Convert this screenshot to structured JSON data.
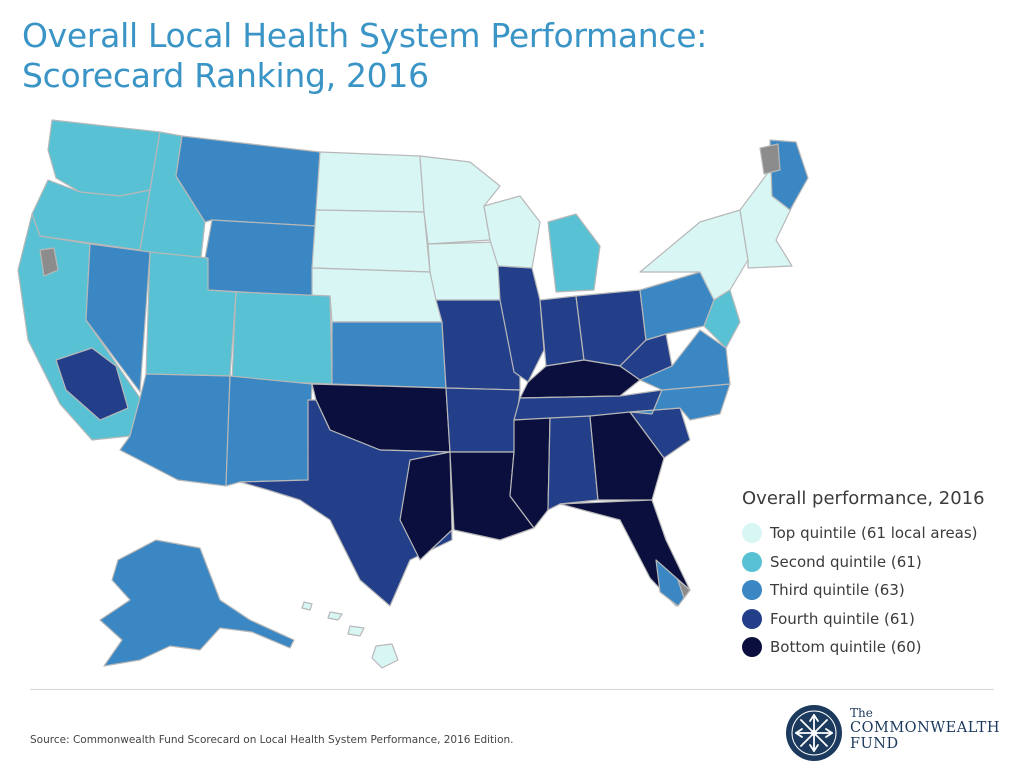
{
  "title": {
    "line1": "Overall Local Health System Performance:",
    "line2": "Scorecard Ranking, 2016"
  },
  "legend": {
    "title": "Overall performance, 2016",
    "items": [
      {
        "label": "Top quintile (61 local areas)",
        "color": "#d8f6f4"
      },
      {
        "label": "Second quintile (61)",
        "color": "#58c1d3"
      },
      {
        "label": "Third quintile (63)",
        "color": "#3a87c3"
      },
      {
        "label": "Fourth quintile (61)",
        "color": "#233f8a"
      },
      {
        "label": "Bottom quintile (60)",
        "color": "#0b0f3e"
      }
    ],
    "no_data_color": "#8c8c8c"
  },
  "source": "Source: Commonwealth Fund Scorecard on Local Health System Performance, 2016 Edition.",
  "logo": {
    "the": "The",
    "name": "COMMONWEALTH",
    "fund": "FUND"
  }
}
